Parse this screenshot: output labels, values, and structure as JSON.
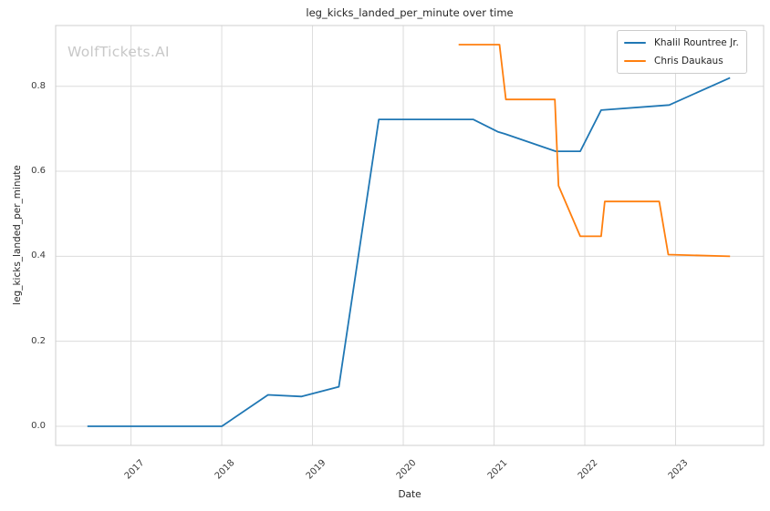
{
  "watermark": "WolfTickets.AI",
  "colors": {
    "series_blue": "#1f77b4",
    "series_orange": "#ff7f0e",
    "grid": "#dcdcdc",
    "spine": "#cfcfcf",
    "text": "#262626",
    "tick_text": "#3b3b3b",
    "watermark": "#c8c8c8",
    "background": "#ffffff"
  },
  "chart_data": {
    "type": "line",
    "title": "leg_kicks_landed_per_minute over time",
    "xlabel": "Date",
    "ylabel": "leg_kicks_landed_per_minute",
    "x_tick_labels": [
      "2017",
      "2018",
      "2019",
      "2020",
      "2021",
      "2022",
      "2023"
    ],
    "y_tick_labels": [
      "0.0",
      "0.2",
      "0.4",
      "0.6",
      "0.8"
    ],
    "xlim": [
      2016.17,
      2023.97
    ],
    "ylim": [
      -0.045,
      0.943
    ],
    "grid": true,
    "legend_position": "upper right",
    "series": [
      {
        "name": "Khalil Rountree Jr.",
        "color": "#1f77b4",
        "points": [
          [
            2016.52,
            0.0
          ],
          [
            2018.0,
            0.0
          ],
          [
            2018.51,
            0.074
          ],
          [
            2018.88,
            0.07
          ],
          [
            2019.29,
            0.093
          ],
          [
            2019.73,
            0.722
          ],
          [
            2020.77,
            0.722
          ],
          [
            2021.04,
            0.693
          ],
          [
            2021.12,
            0.688
          ],
          [
            2021.68,
            0.647
          ],
          [
            2021.95,
            0.647
          ],
          [
            2022.18,
            0.744
          ],
          [
            2022.93,
            0.756
          ],
          [
            2023.6,
            0.82
          ]
        ]
      },
      {
        "name": "Chris Daukaus",
        "color": "#ff7f0e",
        "points": [
          [
            2020.61,
            0.898
          ],
          [
            2021.06,
            0.898
          ],
          [
            2021.13,
            0.769
          ],
          [
            2021.67,
            0.769
          ],
          [
            2021.71,
            0.566
          ],
          [
            2021.95,
            0.447
          ],
          [
            2022.18,
            0.447
          ],
          [
            2022.22,
            0.529
          ],
          [
            2022.82,
            0.529
          ],
          [
            2022.92,
            0.404
          ],
          [
            2023.6,
            0.4
          ]
        ]
      }
    ]
  }
}
